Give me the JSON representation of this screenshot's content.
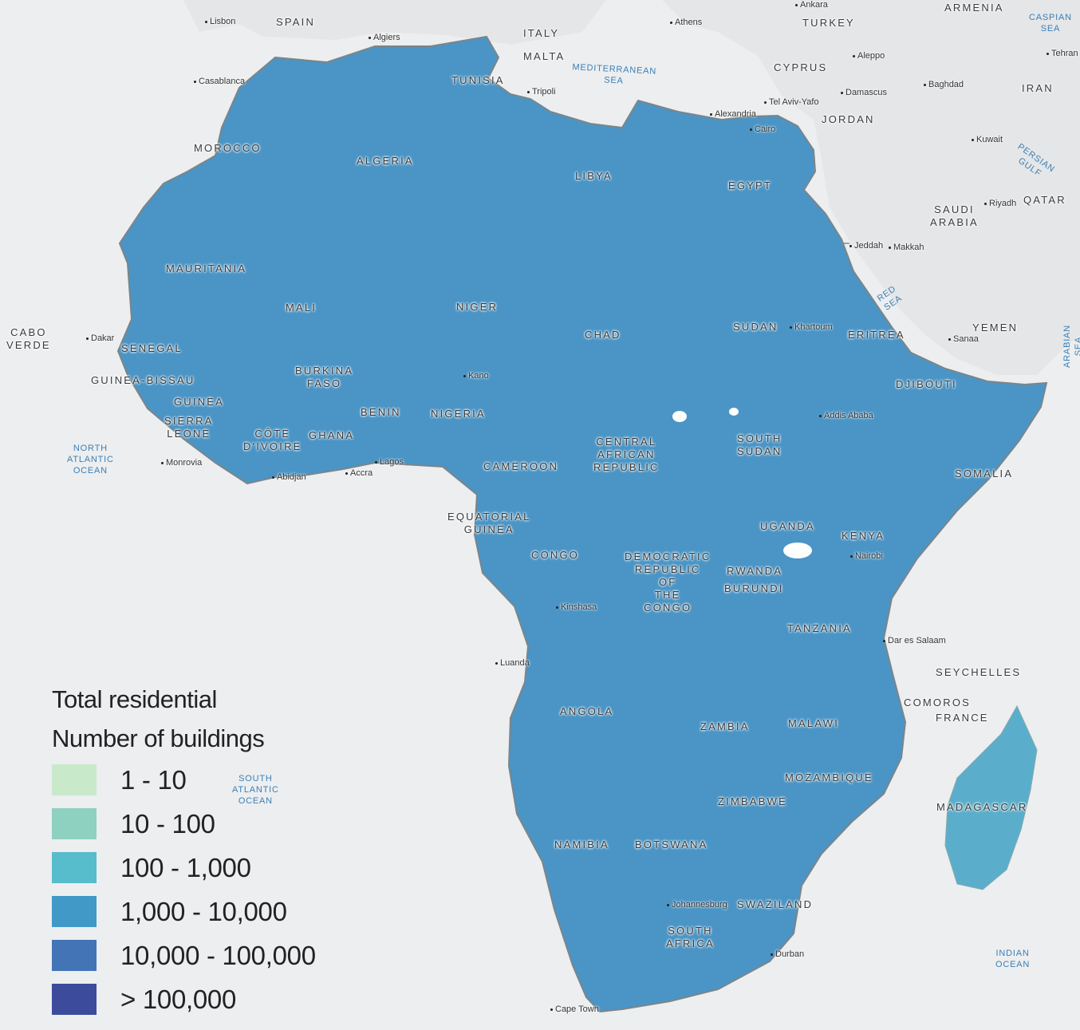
{
  "legend": {
    "title": "Total residential",
    "subtitle": "Number of buildings",
    "items": [
      {
        "label": "1 - 10",
        "color": "#c9e9cb"
      },
      {
        "label": "10 - 100",
        "color": "#8fd1c0"
      },
      {
        "label": "100 - 1,000",
        "color": "#57bccc"
      },
      {
        "label": "1,000 - 10,000",
        "color": "#4099c6"
      },
      {
        "label": "10,000 - 100,000",
        "color": "#4274b6"
      },
      {
        "label": "> 100,000",
        "color": "#3d4b9c"
      }
    ]
  },
  "countries": {
    "spain": "SPAIN",
    "italy": "ITALY",
    "malta": "MALTA",
    "turkey": "TURKEY",
    "armenia": "ARMENIA",
    "cyprus": "CYPRUS",
    "jordan": "JORDAN",
    "iran": "IRAN",
    "qatar": "QATAR",
    "saudi": "SAUDI\nARABIA",
    "yemen": "YEMEN",
    "morocco": "MOROCCO",
    "tunisia": "TUNISIA",
    "algeria": "ALGERIA",
    "libya": "LIBYA",
    "egypt": "EGYPT",
    "mauritania": "MAURITANIA",
    "mali": "MALI",
    "niger": "NIGER",
    "chad": "CHAD",
    "sudan": "SUDAN",
    "eritrea": "ERITREA",
    "djibouti": "DJIBOUTI",
    "cabo": "CABO\nVERDE",
    "senegal": "SENEGAL",
    "guinea_bissau": "GUINEA-BISSAU",
    "guinea": "GUINEA",
    "sierra": "SIERRA\nLEONE",
    "burkina": "BURKINA\nFASO",
    "cote": "CÔTE\nD'IVOIRE",
    "ghana": "GHANA",
    "benin": "BENIN",
    "nigeria": "NIGERIA",
    "car": "CENTRAL\nAFRICAN\nREPUBLIC",
    "south_sudan": "SOUTH\nSUDAN",
    "cameroon": "CAMEROON",
    "somalia": "SOMALIA",
    "eq_guinea": "EQUATORIAL\nGUINEA",
    "congo": "CONGO",
    "uganda": "UGANDA",
    "kenya": "KENYA",
    "drc": "DEMOCRATIC\nREPUBLIC\nOF\nTHE\nCONGO",
    "rwanda": "RWANDA",
    "burundi": "BURUNDI",
    "tanzania": "TANZANIA",
    "seychelles": "SEYCHELLES",
    "comoros": "COMOROS",
    "france": "FRANCE",
    "angola": "ANGOLA",
    "zambia": "ZAMBIA",
    "malawi": "MALAWI",
    "mozambique": "MOZAMBIQUE",
    "madagascar": "MADAGASCAR",
    "zimbabwe": "ZIMBABWE",
    "namibia": "NAMIBIA",
    "botswana": "BOTSWANA",
    "swaziland": "SWAZILAND",
    "south_africa": "SOUTH\nAFRICA"
  },
  "cities": {
    "lisbon": "Lisbon",
    "algiers": "Algiers",
    "ankara": "Ankara",
    "athens": "Athens",
    "aleppo": "Aleppo",
    "tehran": "Tehran",
    "casablanca": "Casablanca",
    "tripoli": "Tripoli",
    "baghdad": "Baghdad",
    "alexandria": "Alexandria",
    "tel_aviv": "Tel Aviv-Yafo",
    "damascus": "Damascus",
    "cairo": "Cairo",
    "kuwait": "Kuwait",
    "riyadh": "Riyadh",
    "jeddah": "Jeddah",
    "makkah": "Makkah",
    "dakar": "Dakar",
    "khartoum": "Khartoum",
    "sanaa": "Sanaa",
    "kano": "Kano",
    "addis": "Addis Ababa",
    "monrovia": "Monrovia",
    "lagos": "Lagos",
    "accra": "Accra",
    "abidjan": "Abidjan",
    "nairobi": "Nairobi",
    "kinshasa": "Kinshasa",
    "dar": "Dar es Salaam",
    "luanda": "Luanda",
    "johannesburg": "Johannesburg",
    "durban": "Durban",
    "cape_town": "Cape Town"
  },
  "seas": {
    "caspian": "CASPIAN\nSEA",
    "mediterranean": "MEDITERRANEAN\nSEA",
    "persian": "PERSIAN\nGULF",
    "red": "RED\nSEA",
    "arabian": "ARABIAN\nSEA",
    "north_atlantic": "NORTH\nATLANTIC\nOCEAN",
    "south_atlantic": "SOUTH\nATLANTIC\nOCEAN",
    "indian": "INDIAN\nOCEAN"
  }
}
